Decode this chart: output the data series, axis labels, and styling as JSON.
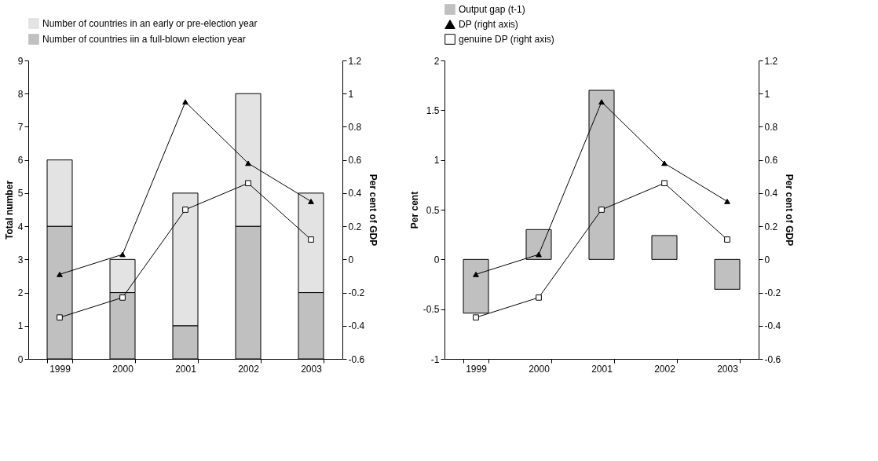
{
  "chart_data": [
    {
      "type": "bar",
      "stacked": true,
      "legend": "top",
      "ylabel": "Total number",
      "y2label": "Per cent of GDP",
      "categories": [
        "1999",
        "2000",
        "2001",
        "2002",
        "2003"
      ],
      "ylim": [
        0,
        9
      ],
      "yticks": [
        0,
        1,
        2,
        3,
        4,
        5,
        6,
        7,
        8,
        9
      ],
      "y2lim": [
        -0.6,
        1.2
      ],
      "y2ticks": [
        -0.6,
        -0.4,
        -0.2,
        0,
        0.2,
        0.4,
        0.6,
        0.8,
        1,
        1.2
      ],
      "series": [
        {
          "name": "Number of countries iin a full-blown election year",
          "color": "#c0c0c0",
          "values": [
            4,
            2,
            1,
            4,
            2
          ]
        },
        {
          "name": "Number of countries in an early or pre-election year",
          "color": "#e3e3e3",
          "values": [
            2,
            1,
            4,
            4,
            3
          ]
        },
        {
          "type": "line",
          "axis": "y2",
          "marker": "triangle",
          "color": "#000000",
          "values": [
            -0.09,
            0.03,
            0.95,
            0.58,
            0.35
          ]
        },
        {
          "type": "line",
          "axis": "y2",
          "marker": "square",
          "color": "#000000",
          "values": [
            -0.35,
            -0.23,
            0.3,
            0.46,
            0.12
          ]
        }
      ]
    },
    {
      "type": "bar",
      "legend": "top",
      "ylabel": "Per cent",
      "y2label": "Per cent of GDP",
      "categories": [
        "1999",
        "2000",
        "2001",
        "2002",
        "2003"
      ],
      "ylim": [
        -1,
        2
      ],
      "yticks": [
        -1,
        -0.5,
        0,
        0.5,
        1,
        1.5,
        2
      ],
      "y2lim": [
        -0.6,
        1.2
      ],
      "y2ticks": [
        -0.6,
        -0.4,
        -0.2,
        0,
        0.2,
        0.4,
        0.6,
        0.8,
        1,
        1.2
      ],
      "series": [
        {
          "name": "Output gap (t-1)",
          "color": "#c0c0c0",
          "values": [
            -0.54,
            0.3,
            1.7,
            0.24,
            -0.3
          ]
        },
        {
          "name": "DP (right axis)",
          "type": "line",
          "axis": "y2",
          "marker": "triangle",
          "color": "#000000",
          "values": [
            -0.09,
            0.03,
            0.95,
            0.58,
            0.35
          ]
        },
        {
          "name": "genuine DP (right axis)",
          "type": "line",
          "axis": "y2",
          "marker": "square",
          "color": "#000000",
          "values": [
            -0.35,
            -0.23,
            0.3,
            0.46,
            0.12
          ]
        }
      ]
    }
  ]
}
